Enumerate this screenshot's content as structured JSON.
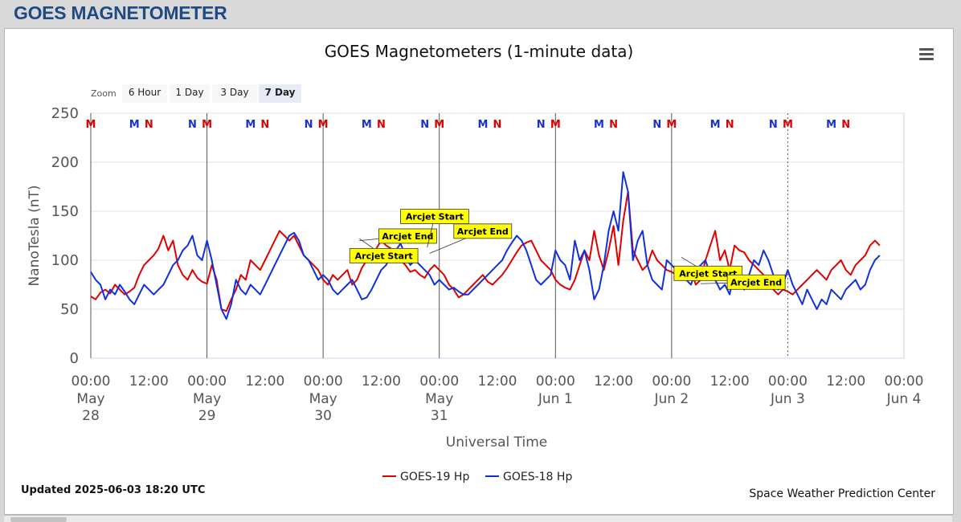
{
  "header": {
    "title": "GOES MAGNETOMETER"
  },
  "menu": {
    "icon": "hamburger-menu-icon"
  },
  "zoom": {
    "label": "Zoom",
    "buttons": [
      "6 Hour",
      "1 Day",
      "3 Day",
      "7 Day"
    ],
    "selected": "7 Day"
  },
  "footer": {
    "updated": "Updated 2025-06-03 18:20 UTC",
    "credit": "Space Weather Prediction Center"
  },
  "colors": {
    "goes19": "#e00000",
    "goes18": "#1030e0",
    "marker_m": "#e00000",
    "marker_n": "#1a2fd0",
    "annotation_bg": "#ffff00"
  },
  "chart_data": {
    "type": "line",
    "title": "GOES Magnetometers (1-minute data)",
    "xlabel": "Universal Time",
    "ylabel": "NanoTesla (nT)",
    "ylim": [
      0,
      250
    ],
    "yticks": [
      0,
      50,
      100,
      150,
      200,
      250
    ],
    "xlim_hours": [
      0,
      168
    ],
    "x_ticks": [
      {
        "h": 0,
        "time": "00:00",
        "date": [
          "May",
          "28"
        ]
      },
      {
        "h": 12,
        "time": "12:00",
        "date": []
      },
      {
        "h": 24,
        "time": "00:00",
        "date": [
          "May",
          "29"
        ]
      },
      {
        "h": 36,
        "time": "12:00",
        "date": []
      },
      {
        "h": 48,
        "time": "00:00",
        "date": [
          "May",
          "30"
        ]
      },
      {
        "h": 60,
        "time": "12:00",
        "date": []
      },
      {
        "h": 72,
        "time": "00:00",
        "date": [
          "May",
          "31"
        ]
      },
      {
        "h": 84,
        "time": "12:00",
        "date": []
      },
      {
        "h": 96,
        "time": "00:00",
        "date": [
          "Jun 1"
        ]
      },
      {
        "h": 108,
        "time": "12:00",
        "date": []
      },
      {
        "h": 120,
        "time": "00:00",
        "date": [
          "Jun 2"
        ]
      },
      {
        "h": 132,
        "time": "12:00",
        "date": []
      },
      {
        "h": 144,
        "time": "00:00",
        "date": [
          "Jun 3"
        ]
      },
      {
        "h": 156,
        "time": "12:00",
        "date": []
      },
      {
        "h": 168,
        "time": "00:00",
        "date": [
          "Jun 4"
        ]
      }
    ],
    "grid": true,
    "legend_position": "bottom-center",
    "day_lines_hours": [
      24,
      48,
      72,
      96,
      120
    ],
    "current_time_hour": 144,
    "markers": [
      {
        "h": 0,
        "label": "M",
        "color": "#e00000"
      },
      {
        "h": 9,
        "label": "M",
        "color": "#1a2fd0"
      },
      {
        "h": 12,
        "label": "N",
        "color": "#e00000"
      },
      {
        "h": 21,
        "label": "N",
        "color": "#1a2fd0"
      },
      {
        "h": 24,
        "label": "M",
        "color": "#e00000"
      },
      {
        "h": 33,
        "label": "M",
        "color": "#1a2fd0"
      },
      {
        "h": 36,
        "label": "N",
        "color": "#e00000"
      },
      {
        "h": 45,
        "label": "N",
        "color": "#1a2fd0"
      },
      {
        "h": 48,
        "label": "M",
        "color": "#e00000"
      },
      {
        "h": 57,
        "label": "M",
        "color": "#1a2fd0"
      },
      {
        "h": 60,
        "label": "N",
        "color": "#e00000"
      },
      {
        "h": 69,
        "label": "N",
        "color": "#1a2fd0"
      },
      {
        "h": 72,
        "label": "M",
        "color": "#e00000"
      },
      {
        "h": 81,
        "label": "M",
        "color": "#1a2fd0"
      },
      {
        "h": 84,
        "label": "N",
        "color": "#e00000"
      },
      {
        "h": 93,
        "label": "N",
        "color": "#1a2fd0"
      },
      {
        "h": 96,
        "label": "M",
        "color": "#e00000"
      },
      {
        "h": 105,
        "label": "M",
        "color": "#1a2fd0"
      },
      {
        "h": 108,
        "label": "N",
        "color": "#e00000"
      },
      {
        "h": 117,
        "label": "N",
        "color": "#1a2fd0"
      },
      {
        "h": 120,
        "label": "M",
        "color": "#e00000"
      },
      {
        "h": 129,
        "label": "M",
        "color": "#1a2fd0"
      },
      {
        "h": 132,
        "label": "N",
        "color": "#e00000"
      },
      {
        "h": 141,
        "label": "N",
        "color": "#1a2fd0"
      },
      {
        "h": 144,
        "label": "M",
        "color": "#e00000"
      },
      {
        "h": 153,
        "label": "M",
        "color": "#1a2fd0"
      },
      {
        "h": 156,
        "label": "N",
        "color": "#e00000"
      }
    ],
    "annotations": [
      {
        "text": "Arcjet Start",
        "h": 53.5,
        "y": 112,
        "anchor_h": 55.5,
        "anchor_y": 122
      },
      {
        "text": "Arcjet End",
        "h": 59.5,
        "y": 132,
        "anchor_h": 55.5,
        "anchor_y": 120
      },
      {
        "text": "Arcjet Start",
        "h": 64,
        "y": 152,
        "anchor_h": 69.5,
        "anchor_y": 113
      },
      {
        "text": "Arcjet End",
        "h": 75,
        "y": 137,
        "anchor_h": 70,
        "anchor_y": 107
      },
      {
        "text": "Arcjet Start",
        "h": 120.5,
        "y": 94,
        "anchor_h": 122,
        "anchor_y": 103
      },
      {
        "text": "Arcjet End",
        "h": 131.5,
        "y": 85,
        "anchor_h": 126,
        "anchor_y": 76
      }
    ],
    "series": [
      {
        "name": "GOES-19 Hp",
        "color": "#e00000",
        "x": [
          0,
          1,
          2,
          3,
          4,
          5,
          6,
          7,
          8,
          9,
          10,
          11,
          12,
          13,
          14,
          15,
          16,
          17,
          18,
          19,
          20,
          21,
          22,
          23,
          24,
          25,
          26,
          27,
          28,
          29,
          30,
          31,
          32,
          33,
          34,
          35,
          36,
          37,
          38,
          39,
          40,
          41,
          42,
          43,
          44,
          45,
          46,
          47,
          48,
          49,
          50,
          51,
          52,
          53,
          54,
          55,
          56,
          57,
          58,
          59,
          60,
          61,
          62,
          63,
          64,
          65,
          66,
          67,
          68,
          69,
          70,
          71,
          72,
          73,
          74,
          75,
          76,
          77,
          78,
          79,
          80,
          81,
          82,
          83,
          84,
          85,
          86,
          87,
          88,
          89,
          90,
          91,
          92,
          93,
          94,
          95,
          96,
          97,
          98,
          99,
          100,
          101,
          102,
          103,
          104,
          105,
          106,
          107,
          108,
          109,
          110,
          111,
          112,
          113,
          114,
          115,
          116,
          117,
          118,
          119,
          120,
          121,
          122,
          123,
          124,
          125,
          126,
          127,
          128,
          129,
          130,
          131,
          132,
          133,
          134,
          135,
          136,
          137,
          138,
          139,
          140,
          141,
          142,
          143,
          144,
          145,
          146,
          147,
          148,
          149,
          150,
          151,
          152,
          153,
          154,
          155,
          156,
          157,
          158,
          159,
          160,
          161,
          162,
          163
        ],
        "y": [
          63,
          60,
          67,
          70,
          66,
          75,
          70,
          65,
          68,
          72,
          85,
          95,
          100,
          105,
          112,
          125,
          110,
          120,
          95,
          85,
          80,
          90,
          82,
          78,
          76,
          95,
          80,
          50,
          48,
          60,
          70,
          85,
          80,
          100,
          95,
          90,
          100,
          110,
          120,
          130,
          125,
          120,
          125,
          115,
          105,
          100,
          95,
          90,
          80,
          75,
          85,
          80,
          85,
          90,
          75,
          80,
          92,
          100,
          105,
          112,
          120,
          115,
          112,
          108,
          100,
          95,
          88,
          90,
          85,
          82,
          90,
          95,
          90,
          85,
          75,
          70,
          62,
          65,
          70,
          75,
          80,
          85,
          78,
          75,
          80,
          85,
          92,
          100,
          108,
          115,
          118,
          120,
          110,
          100,
          95,
          90,
          80,
          75,
          72,
          70,
          80,
          95,
          110,
          100,
          130,
          105,
          90,
          110,
          135,
          95,
          140,
          170,
          110,
          100,
          90,
          95,
          110,
          100,
          95,
          90,
          88,
          85,
          85,
          80,
          88,
          75,
          80,
          100,
          115,
          130,
          100,
          110,
          90,
          115,
          110,
          108,
          100,
          95,
          90,
          85,
          80,
          70,
          65,
          70,
          68,
          65,
          70,
          75,
          80,
          85,
          90,
          85,
          80,
          90,
          95,
          100,
          90,
          85,
          95,
          100,
          105,
          115,
          120,
          115
        ]
      },
      {
        "name": "GOES-18 Hp",
        "color": "#1030e0",
        "x": [
          0,
          1,
          2,
          3,
          4,
          5,
          6,
          7,
          8,
          9,
          10,
          11,
          12,
          13,
          14,
          15,
          16,
          17,
          18,
          19,
          20,
          21,
          22,
          23,
          24,
          25,
          26,
          27,
          28,
          29,
          30,
          31,
          32,
          33,
          34,
          35,
          36,
          37,
          38,
          39,
          40,
          41,
          42,
          43,
          44,
          45,
          46,
          47,
          48,
          49,
          50,
          51,
          52,
          53,
          54,
          55,
          56,
          57,
          58,
          59,
          60,
          61,
          62,
          63,
          64,
          65,
          66,
          67,
          68,
          69,
          70,
          71,
          72,
          73,
          74,
          75,
          76,
          77,
          78,
          79,
          80,
          81,
          82,
          83,
          84,
          85,
          86,
          87,
          88,
          89,
          90,
          91,
          92,
          93,
          94,
          95,
          96,
          97,
          98,
          99,
          100,
          101,
          102,
          103,
          104,
          105,
          106,
          107,
          108,
          109,
          110,
          111,
          112,
          113,
          114,
          115,
          116,
          117,
          118,
          119,
          120,
          121,
          122,
          123,
          124,
          125,
          126,
          127,
          128,
          129,
          130,
          131,
          132,
          133,
          134,
          135,
          136,
          137,
          138,
          139,
          140,
          141,
          142,
          143,
          144,
          145,
          146,
          147,
          148,
          149,
          150,
          151,
          152,
          153,
          154,
          155,
          156,
          157,
          158,
          159,
          160,
          161,
          162,
          163
        ],
        "y": [
          88,
          80,
          75,
          60,
          70,
          65,
          75,
          68,
          60,
          55,
          65,
          75,
          70,
          65,
          70,
          75,
          85,
          95,
          100,
          110,
          115,
          125,
          105,
          100,
          120,
          100,
          75,
          50,
          40,
          55,
          80,
          70,
          65,
          75,
          70,
          65,
          75,
          85,
          95,
          105,
          115,
          125,
          128,
          120,
          105,
          100,
          90,
          80,
          85,
          80,
          70,
          65,
          70,
          75,
          80,
          70,
          60,
          62,
          70,
          80,
          90,
          95,
          105,
          110,
          117,
          105,
          95,
          100,
          95,
          90,
          85,
          75,
          80,
          75,
          70,
          72,
          68,
          65,
          65,
          70,
          75,
          80,
          85,
          90,
          95,
          100,
          110,
          118,
          125,
          120,
          110,
          95,
          80,
          75,
          80,
          85,
          110,
          100,
          95,
          80,
          120,
          100,
          110,
          90,
          60,
          70,
          95,
          130,
          150,
          130,
          190,
          170,
          100,
          120,
          130,
          95,
          80,
          75,
          70,
          100,
          95,
          90,
          85,
          80,
          75,
          90,
          95,
          100,
          85,
          80,
          70,
          75,
          65,
          90,
          80,
          70,
          85,
          100,
          95,
          110,
          100,
          85,
          70,
          75,
          90,
          75,
          65,
          55,
          70,
          60,
          50,
          60,
          55,
          70,
          65,
          60,
          70,
          75,
          80,
          70,
          75,
          90,
          100,
          105
        ]
      }
    ]
  }
}
